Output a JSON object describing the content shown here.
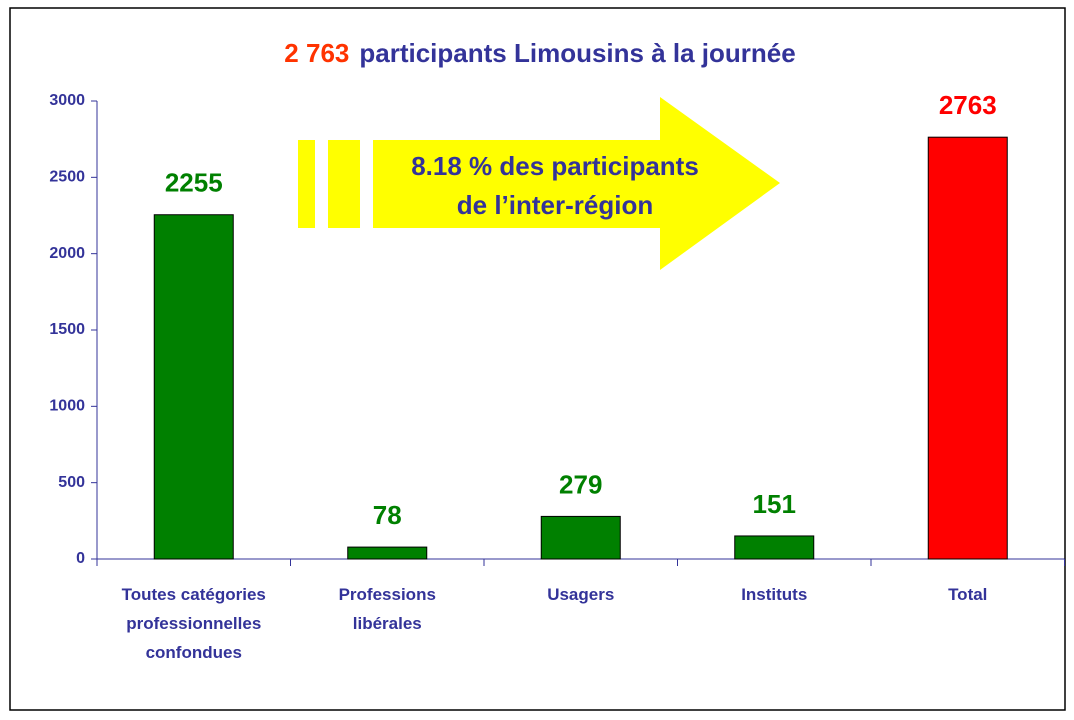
{
  "chart_data": {
    "type": "bar",
    "title_highlight": "2 763",
    "title": "participants Limousins à la journée",
    "annotation": [
      "8.18 % des participants",
      "de l’inter-région"
    ],
    "categories": [
      "Toutes catégories professionnelles confondues",
      "Professions libérales",
      "Usagers",
      "Instituts",
      "Total"
    ],
    "values": [
      2255,
      78,
      279,
      151,
      2763
    ],
    "colors": [
      "#008000",
      "#008000",
      "#008000",
      "#008000",
      "#ff0000"
    ],
    "ylim": [
      0,
      3000
    ],
    "yticks": [
      0,
      500,
      1000,
      1500,
      2000,
      2500,
      3000
    ],
    "grid": false
  }
}
